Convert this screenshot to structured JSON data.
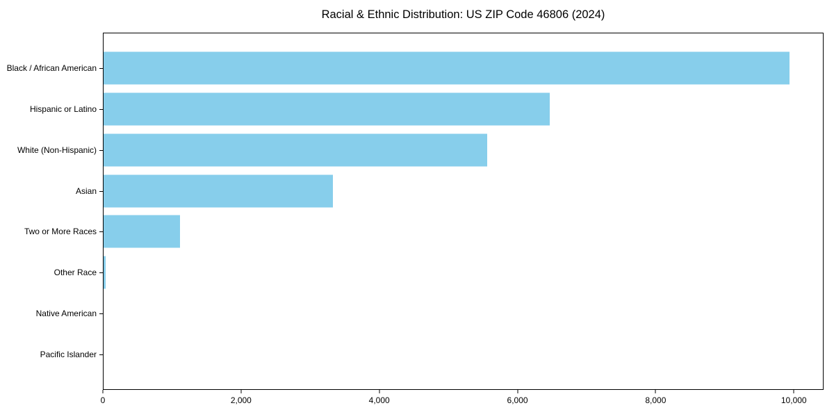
{
  "chart_data": {
    "type": "bar",
    "orientation": "horizontal",
    "title": "Racial & Ethnic Distribution: US ZIP Code 46806 (2024)",
    "categories": [
      "Black / African American",
      "Hispanic or Latino",
      "White (Non-Hispanic)",
      "Asian",
      "Two or More Races",
      "Other Race",
      "Native American",
      "Pacific Islander"
    ],
    "values": [
      9950,
      6470,
      5560,
      3325,
      1110,
      35,
      0,
      0
    ],
    "xlabel": "",
    "ylabel": "",
    "xlim": [
      0,
      10430
    ],
    "x_ticks": [
      0,
      2000,
      4000,
      6000,
      8000,
      10000
    ],
    "x_tick_labels": [
      "0",
      "2,000",
      "4,000",
      "6,000",
      "8,000",
      "10,000"
    ],
    "bar_color": "#87CEEB",
    "spine_color": "#000000",
    "text_color": "#000000",
    "background_color": "#ffffff",
    "grid": false,
    "legend": "none"
  }
}
